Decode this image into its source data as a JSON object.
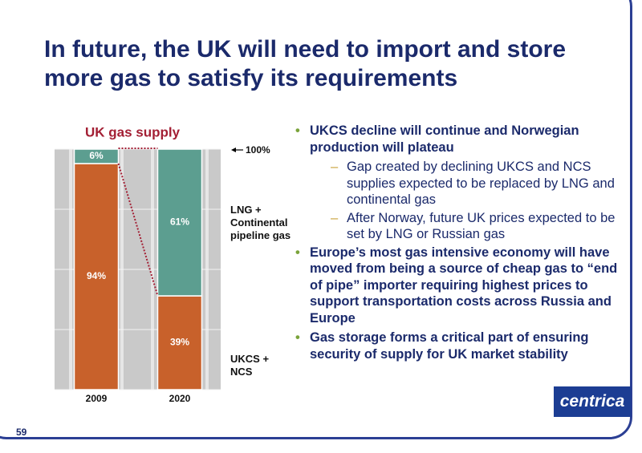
{
  "title": "In future, the UK will need to import and store more gas to satisfy its requirements",
  "page_number": "59",
  "logo": "centrica",
  "bullets": [
    {
      "text": "UKCS decline will continue and Norwegian production will plateau",
      "sub": [
        "Gap created by declining UKCS and NCS supplies expected to be replaced by LNG and continental gas",
        "After Norway, future UK prices expected to be set by LNG or Russian gas"
      ]
    },
    {
      "text": "Europe’s most gas intensive economy will have moved from being a source of cheap gas to “end of pipe” importer requiring highest prices to support transportation costs across Russia and Europe",
      "sub": []
    },
    {
      "text": "Gas storage forms a critical part of ensuring security of supply for UK market stability",
      "sub": []
    }
  ],
  "chart_data": {
    "type": "stacked_bar",
    "title": "UK gas supply",
    "annotation": "100%",
    "categories": [
      "2009",
      "2020"
    ],
    "series": [
      {
        "name": "UKCS + NCS",
        "color": "#c8612b",
        "values": [
          94,
          39
        ],
        "value_labels": [
          "94%",
          "39%"
        ]
      },
      {
        "name": "LNG + Continental pipeline gas",
        "color": "#5c9e90",
        "values": [
          6,
          61
        ],
        "value_labels": [
          "6%",
          "61%"
        ]
      }
    ],
    "ylim": [
      0,
      100
    ],
    "yticks": [
      0,
      25,
      50,
      75,
      100
    ],
    "grid": true
  }
}
